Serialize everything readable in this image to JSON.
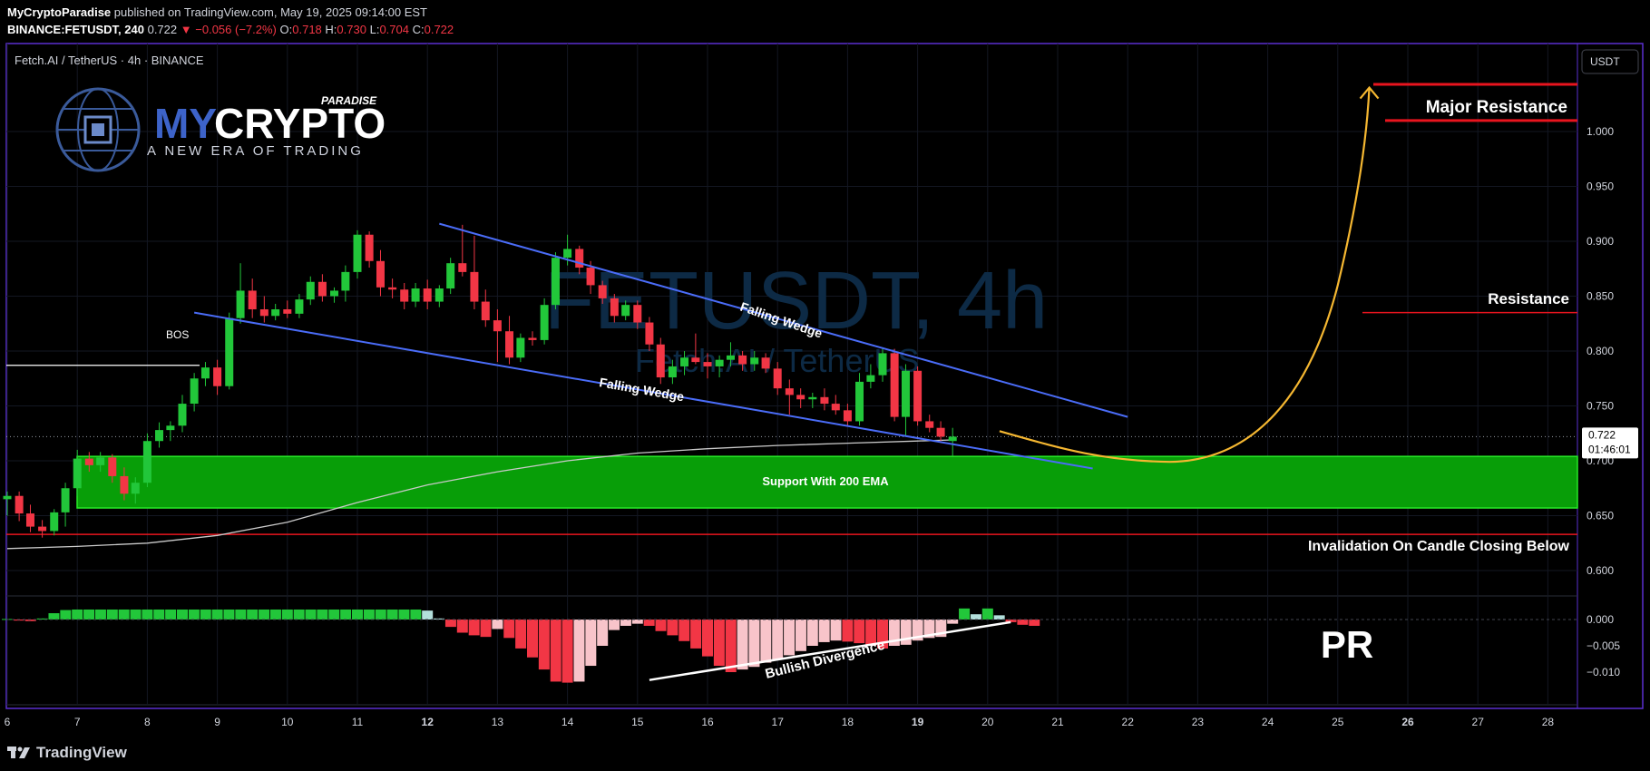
{
  "header": {
    "author": "MyCryptoParadise",
    "published_text": "published on TradingView.com, May 19, 2025 09:14:00 EST",
    "symbol": "BINANCE:FETUSDT, 240",
    "last": "0.722",
    "change": "−0.056 (−7.2%)",
    "o_label": "O:",
    "o": "0.718",
    "h_label": "H:",
    "h": "0.730",
    "l_label": "L:",
    "l": "0.704",
    "c_label": "C:",
    "c": "0.722"
  },
  "pane": {
    "title": "Fetch.AI / TetherUS · 4h · BINANCE",
    "currency": "USDT",
    "watermark": "FETUSDT, 4h",
    "watermark_sub": "Fetch.AI / TetherUS",
    "last_price": "0.722",
    "countdown": "01:46:01"
  },
  "logo": {
    "paradise": "PARADISE",
    "brand_a": "MY",
    "brand_b": "CRYPTO",
    "tagline": "A NEW ERA OF TRADING"
  },
  "annotations": {
    "bos": "BOS",
    "falling_wedge_upper": "Falling Wedge",
    "falling_wedge_lower": "Falling Wedge",
    "support": "Support With 200 EMA",
    "major_resistance": "Major Resistance",
    "resistance": "Resistance",
    "invalidation": "Invalidation On Candle Closing Below",
    "bullish_divergence": "Bullish Divergence",
    "pr": "PR"
  },
  "footer": {
    "brand": "TradingView"
  },
  "colors": {
    "up": "#22c73a",
    "down": "#f23645",
    "wedge": "#4a6cf7",
    "support": "#13b913",
    "projection": "#f5b731",
    "resistance": "#e8141e",
    "frame": "#5a2fd0"
  },
  "chart_data": {
    "type": "candlestick",
    "symbol": "FETUSDT",
    "timeframe": "4h",
    "x_ticks": [
      "6",
      "7",
      "8",
      "9",
      "10",
      "11",
      "12",
      "13",
      "14",
      "15",
      "16",
      "17",
      "18",
      "19",
      "20",
      "21",
      "22",
      "23",
      "24",
      "25",
      "26",
      "27",
      "28"
    ],
    "y_ticks": [
      "1.000",
      "0.950",
      "0.900",
      "0.850",
      "0.800",
      "0.750",
      "0.700",
      "0.650",
      "0.600"
    ],
    "y_ticks_values": [
      1.0,
      0.95,
      0.9,
      0.85,
      0.8,
      0.75,
      0.7,
      0.65,
      0.6
    ],
    "ylim": [
      0.58,
      1.06
    ],
    "osc_ticks": [
      "0.000",
      "−0.005",
      "−0.010"
    ],
    "osc_ticks_values": [
      0.0,
      -0.005,
      -0.01
    ],
    "osc_lim": [
      -0.0125,
      0.0035
    ],
    "candles": [
      {
        "d": 6.0,
        "o": 0.665,
        "h": 0.672,
        "l": 0.65,
        "c": 0.668
      },
      {
        "d": 6.17,
        "o": 0.668,
        "h": 0.672,
        "l": 0.645,
        "c": 0.652
      },
      {
        "d": 6.33,
        "o": 0.652,
        "h": 0.66,
        "l": 0.635,
        "c": 0.64
      },
      {
        "d": 6.5,
        "o": 0.64,
        "h": 0.646,
        "l": 0.63,
        "c": 0.636
      },
      {
        "d": 6.67,
        "o": 0.636,
        "h": 0.656,
        "l": 0.632,
        "c": 0.653
      },
      {
        "d": 6.83,
        "o": 0.653,
        "h": 0.68,
        "l": 0.64,
        "c": 0.675
      },
      {
        "d": 7.0,
        "o": 0.675,
        "h": 0.71,
        "l": 0.668,
        "c": 0.702
      },
      {
        "d": 7.17,
        "o": 0.702,
        "h": 0.708,
        "l": 0.69,
        "c": 0.696
      },
      {
        "d": 7.33,
        "o": 0.696,
        "h": 0.708,
        "l": 0.69,
        "c": 0.703
      },
      {
        "d": 7.5,
        "o": 0.703,
        "h": 0.706,
        "l": 0.68,
        "c": 0.686
      },
      {
        "d": 7.67,
        "o": 0.686,
        "h": 0.694,
        "l": 0.664,
        "c": 0.67
      },
      {
        "d": 7.83,
        "o": 0.67,
        "h": 0.685,
        "l": 0.661,
        "c": 0.68
      },
      {
        "d": 8.0,
        "o": 0.68,
        "h": 0.725,
        "l": 0.676,
        "c": 0.718
      },
      {
        "d": 8.17,
        "o": 0.718,
        "h": 0.735,
        "l": 0.712,
        "c": 0.728
      },
      {
        "d": 8.33,
        "o": 0.728,
        "h": 0.736,
        "l": 0.718,
        "c": 0.732
      },
      {
        "d": 8.5,
        "o": 0.732,
        "h": 0.76,
        "l": 0.726,
        "c": 0.752
      },
      {
        "d": 8.67,
        "o": 0.752,
        "h": 0.78,
        "l": 0.745,
        "c": 0.775
      },
      {
        "d": 8.83,
        "o": 0.775,
        "h": 0.79,
        "l": 0.768,
        "c": 0.785
      },
      {
        "d": 9.0,
        "o": 0.785,
        "h": 0.792,
        "l": 0.76,
        "c": 0.768
      },
      {
        "d": 9.17,
        "o": 0.768,
        "h": 0.835,
        "l": 0.765,
        "c": 0.83
      },
      {
        "d": 9.33,
        "o": 0.83,
        "h": 0.88,
        "l": 0.825,
        "c": 0.855
      },
      {
        "d": 9.5,
        "o": 0.855,
        "h": 0.866,
        "l": 0.83,
        "c": 0.838
      },
      {
        "d": 9.67,
        "o": 0.838,
        "h": 0.85,
        "l": 0.826,
        "c": 0.832
      },
      {
        "d": 9.83,
        "o": 0.832,
        "h": 0.843,
        "l": 0.828,
        "c": 0.838
      },
      {
        "d": 10.0,
        "o": 0.838,
        "h": 0.846,
        "l": 0.83,
        "c": 0.834
      },
      {
        "d": 10.17,
        "o": 0.834,
        "h": 0.852,
        "l": 0.83,
        "c": 0.847
      },
      {
        "d": 10.33,
        "o": 0.847,
        "h": 0.868,
        "l": 0.842,
        "c": 0.863
      },
      {
        "d": 10.5,
        "o": 0.863,
        "h": 0.87,
        "l": 0.845,
        "c": 0.85
      },
      {
        "d": 10.67,
        "o": 0.85,
        "h": 0.858,
        "l": 0.844,
        "c": 0.855
      },
      {
        "d": 10.83,
        "o": 0.855,
        "h": 0.878,
        "l": 0.845,
        "c": 0.872
      },
      {
        "d": 11.0,
        "o": 0.872,
        "h": 0.91,
        "l": 0.866,
        "c": 0.906
      },
      {
        "d": 11.17,
        "o": 0.906,
        "h": 0.909,
        "l": 0.876,
        "c": 0.882
      },
      {
        "d": 11.33,
        "o": 0.882,
        "h": 0.892,
        "l": 0.85,
        "c": 0.858
      },
      {
        "d": 11.5,
        "o": 0.858,
        "h": 0.866,
        "l": 0.848,
        "c": 0.856
      },
      {
        "d": 11.67,
        "o": 0.856,
        "h": 0.862,
        "l": 0.838,
        "c": 0.845
      },
      {
        "d": 11.83,
        "o": 0.845,
        "h": 0.862,
        "l": 0.84,
        "c": 0.857
      },
      {
        "d": 12.0,
        "o": 0.857,
        "h": 0.865,
        "l": 0.838,
        "c": 0.845
      },
      {
        "d": 12.17,
        "o": 0.845,
        "h": 0.86,
        "l": 0.84,
        "c": 0.857
      },
      {
        "d": 12.33,
        "o": 0.857,
        "h": 0.885,
        "l": 0.852,
        "c": 0.88
      },
      {
        "d": 12.5,
        "o": 0.88,
        "h": 0.915,
        "l": 0.868,
        "c": 0.872
      },
      {
        "d": 12.67,
        "o": 0.872,
        "h": 0.905,
        "l": 0.838,
        "c": 0.845
      },
      {
        "d": 12.83,
        "o": 0.845,
        "h": 0.856,
        "l": 0.822,
        "c": 0.828
      },
      {
        "d": 13.0,
        "o": 0.828,
        "h": 0.838,
        "l": 0.79,
        "c": 0.818
      },
      {
        "d": 13.17,
        "o": 0.818,
        "h": 0.832,
        "l": 0.788,
        "c": 0.794
      },
      {
        "d": 13.33,
        "o": 0.794,
        "h": 0.816,
        "l": 0.79,
        "c": 0.812
      },
      {
        "d": 13.5,
        "o": 0.812,
        "h": 0.818,
        "l": 0.805,
        "c": 0.81
      },
      {
        "d": 13.67,
        "o": 0.81,
        "h": 0.848,
        "l": 0.806,
        "c": 0.842
      },
      {
        "d": 13.83,
        "o": 0.842,
        "h": 0.89,
        "l": 0.838,
        "c": 0.885
      },
      {
        "d": 14.0,
        "o": 0.885,
        "h": 0.906,
        "l": 0.878,
        "c": 0.893
      },
      {
        "d": 14.17,
        "o": 0.893,
        "h": 0.896,
        "l": 0.87,
        "c": 0.876
      },
      {
        "d": 14.33,
        "o": 0.876,
        "h": 0.882,
        "l": 0.852,
        "c": 0.86
      },
      {
        "d": 14.5,
        "o": 0.86,
        "h": 0.864,
        "l": 0.843,
        "c": 0.848
      },
      {
        "d": 14.67,
        "o": 0.848,
        "h": 0.852,
        "l": 0.826,
        "c": 0.832
      },
      {
        "d": 14.83,
        "o": 0.832,
        "h": 0.846,
        "l": 0.828,
        "c": 0.842
      },
      {
        "d": 15.0,
        "o": 0.842,
        "h": 0.846,
        "l": 0.82,
        "c": 0.826
      },
      {
        "d": 15.17,
        "o": 0.826,
        "h": 0.831,
        "l": 0.8,
        "c": 0.806
      },
      {
        "d": 15.33,
        "o": 0.806,
        "h": 0.812,
        "l": 0.77,
        "c": 0.776
      },
      {
        "d": 15.5,
        "o": 0.776,
        "h": 0.792,
        "l": 0.77,
        "c": 0.786
      },
      {
        "d": 15.67,
        "o": 0.786,
        "h": 0.8,
        "l": 0.778,
        "c": 0.794
      },
      {
        "d": 15.83,
        "o": 0.794,
        "h": 0.816,
        "l": 0.788,
        "c": 0.79
      },
      {
        "d": 16.0,
        "o": 0.79,
        "h": 0.798,
        "l": 0.775,
        "c": 0.786
      },
      {
        "d": 16.17,
        "o": 0.786,
        "h": 0.796,
        "l": 0.776,
        "c": 0.792
      },
      {
        "d": 16.33,
        "o": 0.792,
        "h": 0.808,
        "l": 0.786,
        "c": 0.796
      },
      {
        "d": 16.5,
        "o": 0.796,
        "h": 0.8,
        "l": 0.782,
        "c": 0.788
      },
      {
        "d": 16.67,
        "o": 0.788,
        "h": 0.8,
        "l": 0.782,
        "c": 0.794
      },
      {
        "d": 16.83,
        "o": 0.794,
        "h": 0.798,
        "l": 0.78,
        "c": 0.784
      },
      {
        "d": 17.0,
        "o": 0.784,
        "h": 0.79,
        "l": 0.76,
        "c": 0.766
      },
      {
        "d": 17.17,
        "o": 0.766,
        "h": 0.774,
        "l": 0.742,
        "c": 0.76
      },
      {
        "d": 17.33,
        "o": 0.76,
        "h": 0.766,
        "l": 0.748,
        "c": 0.756
      },
      {
        "d": 17.5,
        "o": 0.756,
        "h": 0.762,
        "l": 0.748,
        "c": 0.758
      },
      {
        "d": 17.67,
        "o": 0.758,
        "h": 0.766,
        "l": 0.746,
        "c": 0.752
      },
      {
        "d": 17.83,
        "o": 0.752,
        "h": 0.76,
        "l": 0.742,
        "c": 0.746
      },
      {
        "d": 18.0,
        "o": 0.746,
        "h": 0.752,
        "l": 0.732,
        "c": 0.736
      },
      {
        "d": 18.17,
        "o": 0.736,
        "h": 0.78,
        "l": 0.732,
        "c": 0.772
      },
      {
        "d": 18.33,
        "o": 0.772,
        "h": 0.788,
        "l": 0.766,
        "c": 0.778
      },
      {
        "d": 18.5,
        "o": 0.778,
        "h": 0.802,
        "l": 0.772,
        "c": 0.798
      },
      {
        "d": 18.67,
        "o": 0.798,
        "h": 0.802,
        "l": 0.736,
        "c": 0.74
      },
      {
        "d": 18.83,
        "o": 0.74,
        "h": 0.788,
        "l": 0.722,
        "c": 0.782
      },
      {
        "d": 19.0,
        "o": 0.782,
        "h": 0.786,
        "l": 0.732,
        "c": 0.736
      },
      {
        "d": 19.17,
        "o": 0.736,
        "h": 0.742,
        "l": 0.726,
        "c": 0.73
      },
      {
        "d": 19.33,
        "o": 0.73,
        "h": 0.736,
        "l": 0.718,
        "c": 0.722
      },
      {
        "d": 19.5,
        "o": 0.718,
        "h": 0.73,
        "l": 0.704,
        "c": 0.722
      }
    ],
    "ema200": [
      [
        6,
        0.62
      ],
      [
        7,
        0.622
      ],
      [
        8,
        0.625
      ],
      [
        9,
        0.632
      ],
      [
        10,
        0.644
      ],
      [
        11,
        0.662
      ],
      [
        12,
        0.678
      ],
      [
        13,
        0.69
      ],
      [
        14,
        0.7
      ],
      [
        15,
        0.707
      ],
      [
        16,
        0.711
      ],
      [
        17,
        0.714
      ],
      [
        18,
        0.716
      ],
      [
        19,
        0.718
      ],
      [
        19.5,
        0.719
      ]
    ],
    "oscillator": [
      0.0001,
      -0.0002,
      -0.0003,
      0.0002,
      0.0012,
      0.0018,
      0.0019,
      0.0019,
      0.0019,
      0.0019,
      0.0019,
      0.0019,
      0.0019,
      0.0019,
      0.0019,
      0.0019,
      0.0019,
      0.0019,
      0.0019,
      0.0019,
      0.0019,
      0.0019,
      0.0019,
      0.0019,
      0.0019,
      0.0019,
      0.0019,
      0.0019,
      0.0019,
      0.0019,
      0.0019,
      0.0019,
      0.0019,
      0.0019,
      0.0019,
      0.0019,
      0.0017,
      0.0002,
      -0.0014,
      -0.0025,
      -0.003,
      -0.0033,
      -0.0018,
      -0.0035,
      -0.0055,
      -0.0072,
      -0.0095,
      -0.0118,
      -0.012,
      -0.0118,
      -0.0088,
      -0.005,
      -0.002,
      -0.0012,
      -0.0008,
      -0.0012,
      -0.0022,
      -0.003,
      -0.0041,
      -0.0055,
      -0.007,
      -0.0088,
      -0.01,
      -0.0095,
      -0.009,
      -0.0082,
      -0.0076,
      -0.0068,
      -0.006,
      -0.005,
      -0.0043,
      -0.004,
      -0.0042,
      -0.0045,
      -0.005,
      -0.0055,
      -0.005,
      -0.0048,
      -0.004,
      -0.0035,
      -0.0033,
      -0.0008,
      0.0021,
      0.001,
      0.0021,
      0.0008,
      -0.0005,
      -0.001,
      -0.0012
    ],
    "oscillator_colors": "green > 0 rising lightgreen > 0 falling, red < 0 falling, pink < 0 rising",
    "levels": {
      "major_resistance_top": 1.043,
      "major_resistance_bottom": 1.01,
      "resistance": 0.835,
      "support_top": 0.704,
      "support_bottom": 0.657,
      "invalidation": 0.633
    },
    "wedge_upper": [
      [
        12.17,
        0.916
      ],
      [
        22.0,
        0.74
      ]
    ],
    "wedge_lower": [
      [
        8.67,
        0.835
      ],
      [
        21.5,
        0.693
      ]
    ],
    "bos_level": 0.787,
    "projection": [
      [
        20.17,
        0.727
      ],
      [
        22.0,
        0.702
      ],
      [
        23.0,
        0.7
      ],
      [
        24.0,
        0.718
      ],
      [
        25.0,
        0.83
      ],
      [
        25.45,
        1.04
      ]
    ],
    "divergence_line": [
      [
        15.17,
        -0.0115
      ],
      [
        20.33,
        -0.0005
      ]
    ]
  }
}
